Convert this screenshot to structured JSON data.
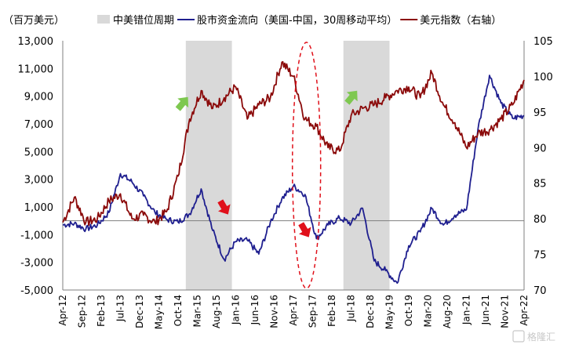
{
  "chart_data": {
    "type": "line",
    "y_left_unit_label": "（百万美元）",
    "legend": [
      {
        "label": "中美错位周期",
        "kind": "band",
        "color": "#d9d9d9"
      },
      {
        "label": "股市资金流向（美国-中国，30周移动平均）",
        "kind": "line",
        "color": "#1f1f8f"
      },
      {
        "label": "美元指数（右轴）",
        "kind": "line",
        "color": "#8b0a0a"
      }
    ],
    "y_left": {
      "min": -5000,
      "max": 13000,
      "ticks": [
        "13,000",
        "11,000",
        "9,000",
        "7,000",
        "5,000",
        "3,000",
        "1,000",
        "-1,000",
        "-3,000",
        "-5,000"
      ]
    },
    "y_right": {
      "min": 70,
      "max": 105,
      "ticks": [
        "105",
        "100",
        "95",
        "90",
        "85",
        "80",
        "75",
        "70"
      ]
    },
    "x_labels": [
      "Apr-12",
      "Sep-12",
      "Feb-13",
      "Jul-13",
      "Dec-13",
      "May-14",
      "Oct-14",
      "Mar-15",
      "Aug-15",
      "Jan-16",
      "Jun-16",
      "Nov-16",
      "Apr-17",
      "Sep-17",
      "Feb-18",
      "Jul-18",
      "Dec-18",
      "May-19",
      "Oct-19",
      "Mar-20",
      "Aug-20",
      "Jan-21",
      "Jun-21",
      "Nov-21",
      "Apr-22"
    ],
    "shaded_periods": [
      {
        "start": "Dec-14",
        "end": "Dec-15"
      },
      {
        "start": "May-18",
        "end": "May-19"
      }
    ],
    "series": [
      {
        "name": "股市资金流向（美国-中国，30周移动平均）",
        "axis": "left",
        "x": [
          "Apr-12",
          "Jul-12",
          "Oct-12",
          "Jan-13",
          "Apr-13",
          "Jul-13",
          "Oct-13",
          "Jan-14",
          "Apr-14",
          "Jul-14",
          "Oct-14",
          "Jan-15",
          "Apr-15",
          "Jul-15",
          "Oct-15",
          "Jan-16",
          "Apr-16",
          "Jul-16",
          "Oct-16",
          "Jan-17",
          "Apr-17",
          "Jul-17",
          "Oct-17",
          "Jan-18",
          "Apr-18",
          "Jul-18",
          "Oct-18",
          "Jan-19",
          "Apr-19",
          "Jul-19",
          "Oct-19",
          "Jan-20",
          "Apr-20",
          "Jul-20",
          "Oct-20",
          "Jan-21",
          "Apr-21",
          "Jul-21",
          "Oct-21",
          "Jan-22",
          "Apr-22"
        ],
        "values": [
          -300,
          -200,
          -600,
          -300,
          600,
          3400,
          2800,
          1800,
          600,
          100,
          -100,
          500,
          2300,
          -700,
          -2800,
          -1500,
          -1400,
          -2400,
          -100,
          1600,
          2500,
          1900,
          -1300,
          -300,
          200,
          -200,
          900,
          -2900,
          -3600,
          -4500,
          -1800,
          -800,
          900,
          -300,
          400,
          800,
          6600,
          10500,
          8500,
          7400,
          7600
        ]
      },
      {
        "name": "美元指数（右轴）",
        "axis": "right",
        "x": [
          "Apr-12",
          "Jul-12",
          "Oct-12",
          "Jan-13",
          "Apr-13",
          "Jul-13",
          "Oct-13",
          "Jan-14",
          "Apr-14",
          "Jul-14",
          "Oct-14",
          "Jan-15",
          "Apr-15",
          "Jul-15",
          "Oct-15",
          "Jan-16",
          "Apr-16",
          "Jul-16",
          "Oct-16",
          "Jan-17",
          "Apr-17",
          "Jul-17",
          "Oct-17",
          "Jan-18",
          "Apr-18",
          "Jul-18",
          "Oct-18",
          "Jan-19",
          "Apr-19",
          "Jul-19",
          "Oct-19",
          "Jan-20",
          "Apr-20",
          "Jul-20",
          "Oct-20",
          "Jan-21",
          "Apr-21",
          "Jul-21",
          "Oct-21",
          "Jan-22",
          "Apr-22"
        ],
        "values": [
          79.5,
          83.0,
          79.5,
          80.0,
          82.5,
          83.5,
          80.0,
          80.5,
          79.5,
          81.0,
          86.0,
          94.0,
          98.0,
          95.5,
          97.0,
          98.5,
          94.0,
          96.0,
          97.0,
          102.0,
          100.0,
          94.0,
          93.0,
          90.0,
          89.5,
          94.5,
          95.5,
          96.0,
          97.0,
          98.0,
          98.5,
          97.0,
          100.5,
          96.0,
          93.5,
          90.0,
          92.0,
          92.5,
          94.0,
          96.0,
          99.5
        ]
      }
    ],
    "annotations": [
      {
        "type": "arrow-up",
        "color": "#7ec850",
        "near": "Nov-14"
      },
      {
        "type": "arrow-down",
        "color": "#e0101a",
        "near": "Oct-15"
      },
      {
        "type": "arrow-down",
        "color": "#e0101a",
        "near": "Jul-17"
      },
      {
        "type": "arrow-up",
        "color": "#7ec850",
        "near": "Jul-18"
      },
      {
        "type": "dashed-ellipse",
        "color": "#e0101a",
        "near": "Jul-17"
      }
    ],
    "watermark": "格隆汇"
  }
}
